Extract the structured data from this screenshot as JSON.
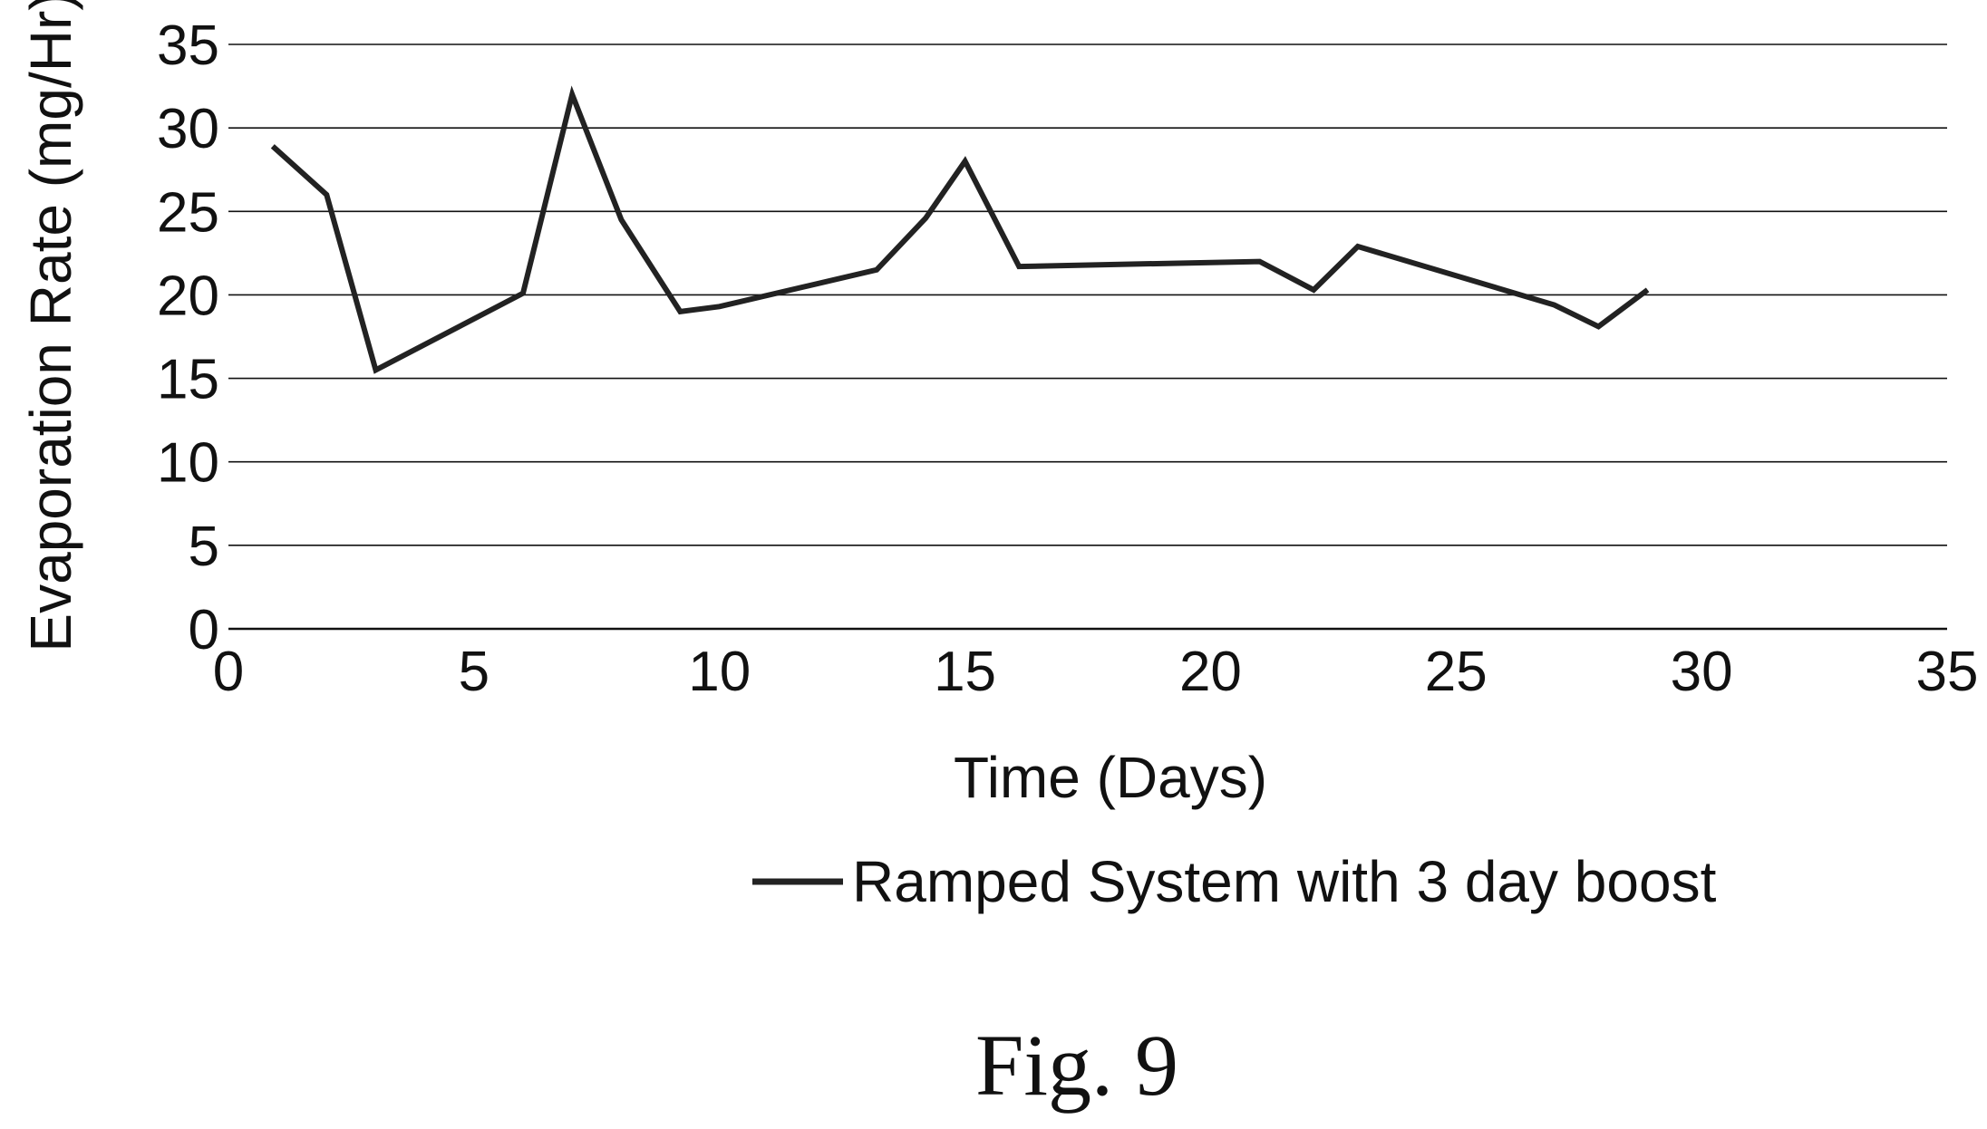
{
  "figure_caption": "Fig. 9",
  "colors": {
    "line": "#222222",
    "grid": "#111111",
    "text": "#111111",
    "background": "#ffffff"
  },
  "chart_data": {
    "type": "line",
    "title": "",
    "xlabel": "Time (Days)",
    "ylabel": "Evaporation Rate (mg/Hr)",
    "xlim": [
      0,
      35
    ],
    "ylim": [
      0,
      35
    ],
    "xticks": [
      0,
      5,
      10,
      15,
      20,
      25,
      30,
      35
    ],
    "yticks": [
      0,
      5,
      10,
      15,
      20,
      25,
      30,
      35
    ],
    "x_tick_labels": [
      "0",
      "5",
      "10",
      "15",
      "20",
      "25",
      "30",
      "35"
    ],
    "y_tick_labels": [
      "0",
      "5",
      "10",
      "15",
      "20",
      "25",
      "30",
      "35"
    ],
    "grid": "horizontal",
    "legend_position": "bottom",
    "series": [
      {
        "name": "Ramped System with 3 day boost",
        "points": [
          [
            0.9,
            28.9
          ],
          [
            2.0,
            26.0
          ],
          [
            3.0,
            15.5
          ],
          [
            6.0,
            20.1
          ],
          [
            7.0,
            32.0
          ],
          [
            8.0,
            24.5
          ],
          [
            9.2,
            19.0
          ],
          [
            10.0,
            19.3
          ],
          [
            13.2,
            21.5
          ],
          [
            14.2,
            24.6
          ],
          [
            15.0,
            28.0
          ],
          [
            16.1,
            21.7
          ],
          [
            21.0,
            22.0
          ],
          [
            22.1,
            20.3
          ],
          [
            23.0,
            22.9
          ],
          [
            27.0,
            19.4
          ],
          [
            27.9,
            18.1
          ],
          [
            28.9,
            20.3
          ]
        ]
      }
    ]
  }
}
